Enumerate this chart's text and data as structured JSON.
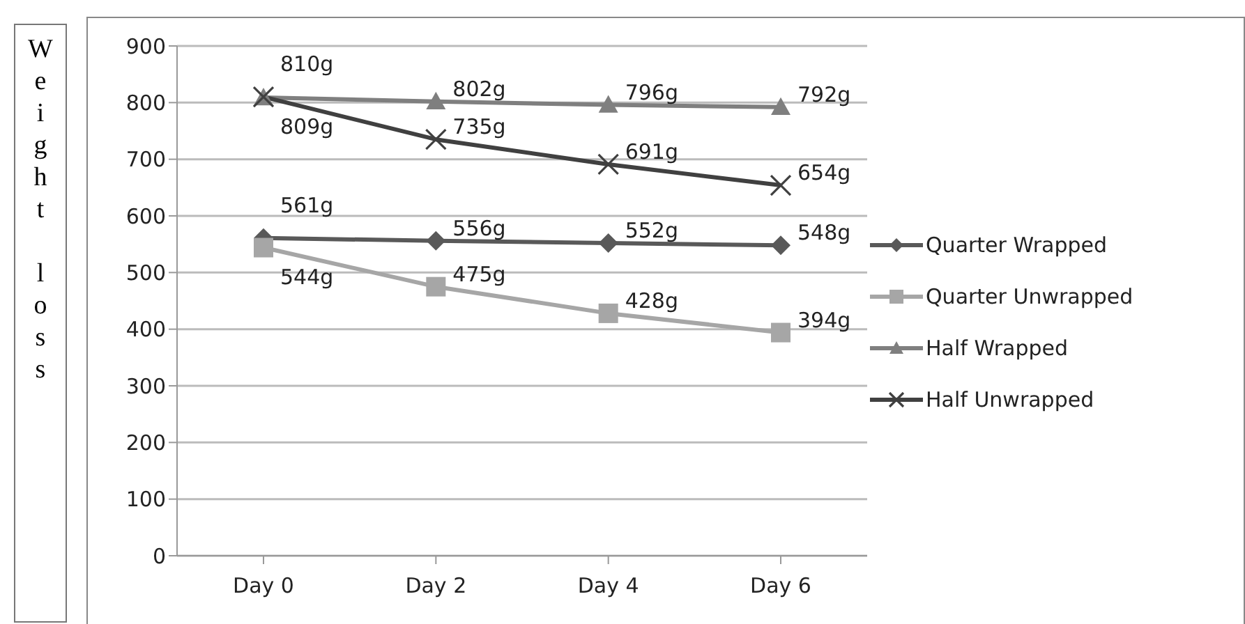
{
  "chart_data": {
    "type": "line",
    "ylabel": "Weight loss",
    "categories": [
      "Day 0",
      "Day 2",
      "Day 4",
      "Day 6"
    ],
    "ylim": [
      0,
      900
    ],
    "yticks": [
      0,
      100,
      200,
      300,
      400,
      500,
      600,
      700,
      800,
      900
    ],
    "grid": "y",
    "legend": "right",
    "line_style": "solid",
    "series": [
      {
        "name": "Quarter Wrapped",
        "color": "#595959",
        "marker": "diamond",
        "values": [
          561,
          556,
          552,
          548
        ],
        "value_labels": [
          "561g",
          "556g",
          "552g",
          "548g"
        ]
      },
      {
        "name": "Quarter Unwrapped",
        "color": "#a6a6a6",
        "marker": "square",
        "values": [
          544,
          475,
          428,
          394
        ],
        "value_labels": [
          "544g",
          "475g",
          "428g",
          "394g"
        ]
      },
      {
        "name": "Half Wrapped",
        "color": "#7f7f7f",
        "marker": "triangle",
        "values": [
          809,
          802,
          796,
          792
        ],
        "value_labels": [
          "809g",
          "802g",
          "796g",
          "792g"
        ]
      },
      {
        "name": "Half Unwrapped",
        "color": "#404040",
        "marker": "cross",
        "values": [
          810,
          735,
          691,
          654
        ],
        "value_labels": [
          "810g",
          "735g",
          "691g",
          "654g"
        ]
      }
    ]
  }
}
